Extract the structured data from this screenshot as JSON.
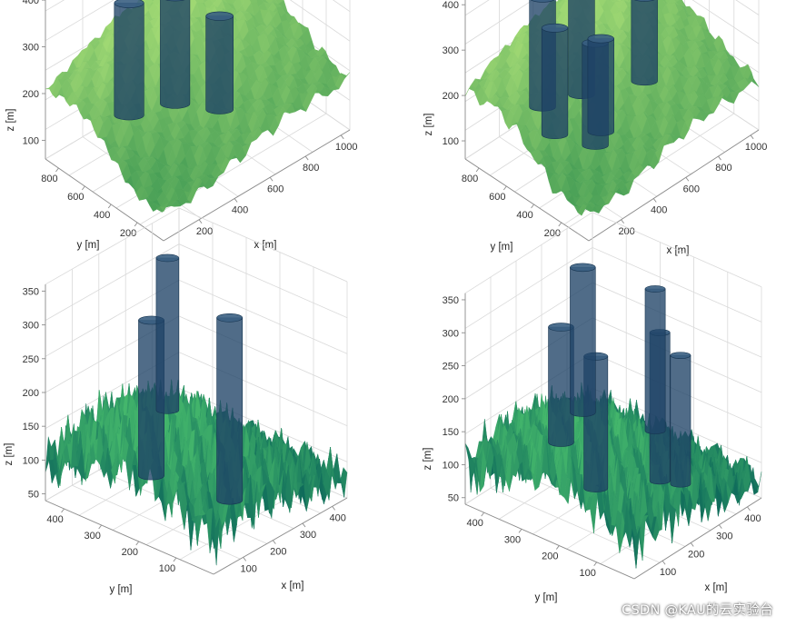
{
  "watermark": "CSDN @KAU的云实验台",
  "chart_data": [
    {
      "type": "surface3d",
      "terrain": "smooth",
      "xlabel": "x [m]",
      "ylabel": "y [m]",
      "zlabel": "z [m]",
      "xticks": [
        "200",
        "400",
        "600",
        "800",
        "1000"
      ],
      "yticks": [
        "200",
        "400",
        "600",
        "800"
      ],
      "zticks": [
        "100",
        "200",
        "300",
        "400"
      ],
      "xlim": [
        0,
        1050
      ],
      "ylim": [
        0,
        900
      ],
      "zlim": [
        60,
        440
      ],
      "surface_colors": [
        "#2f8f4e",
        "#9fd873"
      ],
      "obstacle_color": "#1f4266",
      "obstacles": [
        {
          "x": 220,
          "y": 560,
          "r": 45,
          "z0": 170,
          "z1": 410
        },
        {
          "x": 420,
          "y": 480,
          "r": 45,
          "z0": 165,
          "z1": 395
        },
        {
          "x": 560,
          "y": 330,
          "r": 40,
          "z0": 150,
          "z1": 350
        }
      ]
    },
    {
      "type": "surface3d",
      "terrain": "smooth",
      "xlabel": "x [m]",
      "ylabel": "y [m]",
      "zlabel": "z [m]",
      "xticks": [
        "200",
        "400",
        "600",
        "800",
        "1000"
      ],
      "yticks": [
        "200",
        "400",
        "600",
        "800"
      ],
      "zticks": [
        "100",
        "200",
        "300",
        "400"
      ],
      "xlim": [
        0,
        1050
      ],
      "ylim": [
        0,
        900
      ],
      "zlim": [
        60,
        440
      ],
      "surface_colors": [
        "#2f8f4e",
        "#9fd873"
      ],
      "obstacle_color": "#1f4266",
      "obstacles": [
        {
          "x": 240,
          "y": 620,
          "r": 40,
          "z0": 175,
          "z1": 415
        },
        {
          "x": 180,
          "y": 460,
          "r": 40,
          "z0": 160,
          "z1": 395
        },
        {
          "x": 430,
          "y": 560,
          "r": 40,
          "z0": 170,
          "z1": 420
        },
        {
          "x": 320,
          "y": 330,
          "r": 40,
          "z0": 130,
          "z1": 355
        },
        {
          "x": 700,
          "y": 420,
          "r": 40,
          "z0": 165,
          "z1": 350
        },
        {
          "x": 380,
          "y": 360,
          "r": 40,
          "z0": 140,
          "z1": 345
        }
      ]
    },
    {
      "type": "surface3d",
      "terrain": "rough",
      "xlabel": "x [m]",
      "ylabel": "y [m]",
      "zlabel": "z [m]",
      "xticks": [
        "100",
        "200",
        "300",
        "400"
      ],
      "yticks": [
        "100",
        "200",
        "300",
        "400"
      ],
      "zticks": [
        "50",
        "100",
        "150",
        "200",
        "250",
        "300",
        "350"
      ],
      "xlim": [
        0,
        450
      ],
      "ylim": [
        0,
        450
      ],
      "zlim": [
        40,
        360
      ],
      "surface_colors": [
        "#0f6b5b",
        "#45b86c"
      ],
      "obstacle_color": "#1f4266",
      "obstacles": [
        {
          "x": 80,
          "y": 230,
          "r": 22,
          "z0": 110,
          "z1": 340
        },
        {
          "x": 210,
          "y": 290,
          "r": 18,
          "z0": 160,
          "z1": 385
        },
        {
          "x": 180,
          "y": 100,
          "r": 22,
          "z0": 80,
          "z1": 350
        }
      ]
    },
    {
      "type": "surface3d",
      "terrain": "rough",
      "xlabel": "x [m]",
      "ylabel": "y [m]",
      "zlabel": "z [m]",
      "xticks": [
        "100",
        "200",
        "300",
        "400"
      ],
      "yticks": [
        "100",
        "200",
        "300",
        "400"
      ],
      "zticks": [
        "50",
        "100",
        "150",
        "200",
        "250",
        "300",
        "350"
      ],
      "xlim": [
        0,
        450
      ],
      "ylim": [
        0,
        450
      ],
      "zlim": [
        40,
        360
      ],
      "surface_colors": [
        "#0f6b5b",
        "#45b86c"
      ],
      "obstacle_color": "#1f4266",
      "obstacles": [
        {
          "x": 60,
          "y": 240,
          "r": 22,
          "z0": 170,
          "z1": 345
        },
        {
          "x": 90,
          "y": 170,
          "r": 20,
          "z0": 110,
          "z1": 310
        },
        {
          "x": 190,
          "y": 280,
          "r": 22,
          "z0": 170,
          "z1": 390
        },
        {
          "x": 250,
          "y": 120,
          "r": 15,
          "z0": 90,
          "z1": 315
        },
        {
          "x": 300,
          "y": 170,
          "r": 15,
          "z0": 140,
          "z1": 355
        },
        {
          "x": 270,
          "y": 80,
          "r": 15,
          "z0": 90,
          "z1": 285
        }
      ]
    }
  ]
}
